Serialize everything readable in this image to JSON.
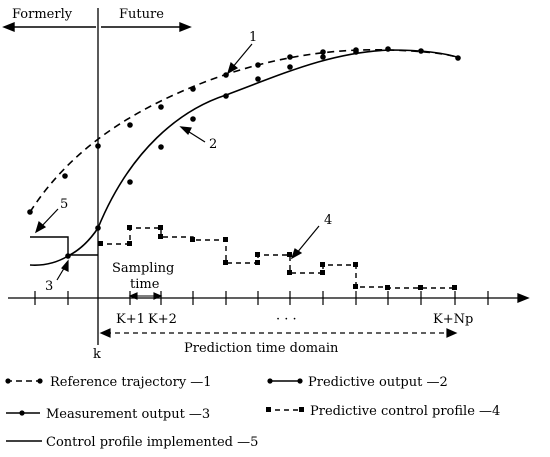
{
  "labels": {
    "formerly": "Formerly",
    "future": "Future",
    "k": "k",
    "k_plus_1": "K+1",
    "k_plus_2": "K+2",
    "k_plus_np": "K+Np",
    "ellipsis": "· · ·",
    "sampling": "Sampling",
    "time_upper": "time",
    "prediction_domain": "Prediction time domain"
  },
  "callouts": {
    "c1": "1",
    "c2": "2",
    "c3": "3",
    "c4": "4",
    "c5": "5"
  },
  "legend": {
    "reference": "Reference trajectory —1",
    "predictive_output": "Predictive output —2",
    "measurement": "Measurement output   —3",
    "predictive_control": "Predictive control profile —4",
    "control_implemented": "Control profile implemented —5"
  }
}
